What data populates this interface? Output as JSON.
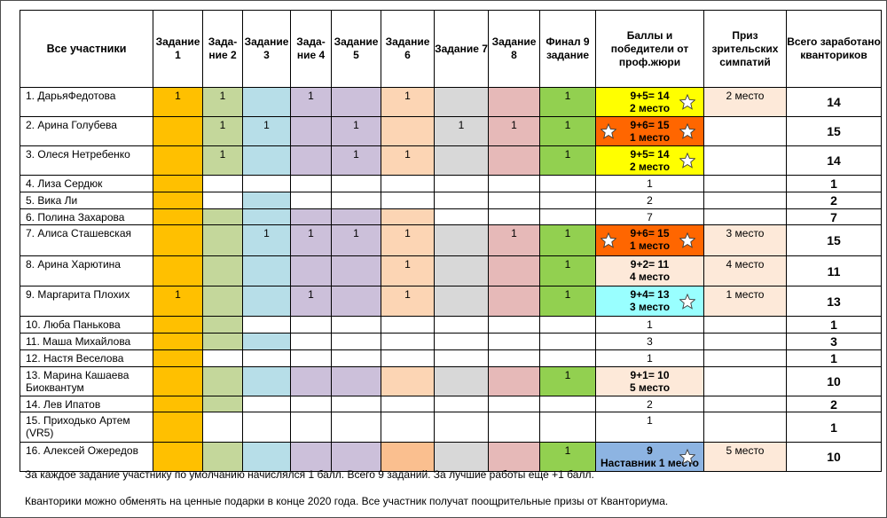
{
  "columns": [
    "Все участники",
    "Задан­ие 1",
    "Зада­ние 2",
    "Задан­ие 3",
    "Зада­ние 4",
    "Задани­e 5",
    "Задан­ие 6",
    "Задани­e 7",
    "Задани­e 8",
    "Финал 9 задани­e",
    "Баллы и победители от проф.жюри",
    "Приз зрительских симпатий",
    "Всего заработано кванториков"
  ],
  "task_colors": [
    "#ffc000",
    "#c4d79b",
    "#b7dee8",
    "#ccc0da",
    "#ccc0da",
    "#fcd5b4",
    "#d8d8d8",
    "#e6b9b8",
    "#92d050"
  ],
  "rows": [
    {
      "name": "1. ДарьяФедотова",
      "tasks": [
        "1",
        "1",
        "",
        "1",
        "",
        "1",
        "",
        "",
        "1"
      ],
      "jury": [
        "9+5= 14",
        "2 место"
      ],
      "jury_bg": "#ffff00",
      "star_right": true,
      "prize": "2 место",
      "total": "14",
      "rowbg": true,
      "h": 33
    },
    {
      "name": "2. Арина Голубева",
      "tasks": [
        "",
        "1",
        "1",
        "",
        "1",
        "",
        "1",
        "1",
        "1"
      ],
      "jury": [
        "9+6= 15",
        "1 место"
      ],
      "jury_bg": "#ff6600",
      "star_left": true,
      "star_right": true,
      "prize": "",
      "total": "15",
      "rowbg": true,
      "h": 33
    },
    {
      "name": "3. Олеся Нетребенко",
      "tasks": [
        "",
        "1",
        "",
        "",
        "1",
        "1",
        "",
        "",
        "1"
      ],
      "jury": [
        "9+5= 14",
        "2 место"
      ],
      "jury_bg": "#ffff00",
      "star_right": true,
      "prize": "",
      "total": "14",
      "rowbg": true,
      "h": 33
    },
    {
      "name": "4. Лиза Сердюк",
      "tasks": [
        "",
        "",
        "",
        "",
        "",
        "",
        "",
        "",
        ""
      ],
      "jury": [
        "1"
      ],
      "plain": true,
      "prize": "",
      "total": "1",
      "rowbg": false,
      "fill": [
        0
      ],
      "h": 19
    },
    {
      "name": "5. Вика Ли",
      "tasks": [
        "",
        "",
        "",
        "",
        "",
        "",
        "",
        "",
        ""
      ],
      "jury": [
        "2"
      ],
      "plain": true,
      "prize": "",
      "total": "2",
      "rowbg": false,
      "fill": [
        0,
        2
      ],
      "h": 19
    },
    {
      "name": "6. Полина Захарова",
      "tasks": [
        "",
        "",
        "",
        "",
        "",
        "",
        "",
        "",
        ""
      ],
      "jury": [
        "7"
      ],
      "plain": true,
      "prize": "",
      "total": "7",
      "rowbg": false,
      "fill": [
        0,
        1,
        2,
        3,
        4,
        5
      ],
      "h": 18
    },
    {
      "name": "7. Алиса Сташевская",
      "tasks": [
        "",
        "",
        "1",
        "1",
        "1",
        "1",
        "",
        "1",
        "1"
      ],
      "jury": [
        "9+6= 15",
        "1 место"
      ],
      "jury_bg": "#ff6600",
      "star_left": true,
      "star_right": true,
      "prize": "3 место",
      "total": "15",
      "rowbg": true,
      "h": 35
    },
    {
      "name": "8. Арина Харютина",
      "tasks": [
        "",
        "",
        "",
        "",
        "",
        "1",
        "",
        "",
        "1"
      ],
      "jury": [
        "9+2= 11",
        "4 место"
      ],
      "jury_bg": "#fde9d9",
      "prize": "4 место",
      "total": "11",
      "rowbg": true,
      "h": 34
    },
    {
      "name": "9. Маргарита Плохих",
      "tasks": [
        "1",
        "",
        "",
        "1",
        "",
        "1",
        "",
        "",
        "1"
      ],
      "jury": [
        "9+4= 13",
        "3 место"
      ],
      "jury_bg": "#99ffff",
      "star_right": true,
      "prize": "1 место",
      "total": "13",
      "rowbg": true,
      "h": 34
    },
    {
      "name": "10. Люба Панькова",
      "tasks": [
        "",
        "",
        "",
        "",
        "",
        "",
        "",
        "",
        ""
      ],
      "jury": [
        "1"
      ],
      "plain": true,
      "prize": "",
      "total": "1",
      "rowbg": false,
      "fill": [
        0,
        1
      ],
      "h": 19
    },
    {
      "name": "11. Маша Михайлова",
      "tasks": [
        "",
        "",
        "",
        "",
        "",
        "",
        "",
        "",
        ""
      ],
      "jury": [
        "3"
      ],
      "plain": true,
      "prize": "",
      "total": "3",
      "rowbg": false,
      "fill": [
        0,
        1,
        2
      ],
      "h": 19
    },
    {
      "name": "12. Настя Веселова",
      "tasks": [
        "",
        "",
        "",
        "",
        "",
        "",
        "",
        "",
        ""
      ],
      "jury": [
        "1"
      ],
      "plain": true,
      "prize": "",
      "total": "1",
      "rowbg": false,
      "fill": [
        0
      ],
      "h": 19
    },
    {
      "name": "13. Марина Кашаева Биоквантум",
      "tasks": [
        "",
        "",
        "",
        "",
        "",
        "",
        "",
        "",
        "1"
      ],
      "jury": [
        "9+1= 10",
        "5 место"
      ],
      "jury_bg": "#fde9d9",
      "prize": "",
      "total": "10",
      "rowbg": true,
      "h": 33
    },
    {
      "name": "14. Лев Ипатов",
      "tasks": [
        "",
        "",
        "",
        "",
        "",
        "",
        "",
        "",
        ""
      ],
      "jury": [
        "2"
      ],
      "plain": true,
      "prize": "",
      "total": "2",
      "rowbg": false,
      "fill": [
        0,
        1
      ],
      "h": 18
    },
    {
      "name": "15. Приходько Артем (VR5)",
      "tasks": [
        "",
        "",
        "",
        "",
        "",
        "",
        "",
        "",
        ""
      ],
      "jury": [
        "1"
      ],
      "plain": true,
      "prize": "",
      "total": "1",
      "rowbg": false,
      "fill": [
        0
      ],
      "h": 34
    },
    {
      "name": "16. Алексей Ожередов",
      "tasks": [
        "",
        "",
        "",
        "",
        "",
        "",
        "",
        "",
        "1"
      ],
      "jury": [
        "9",
        "Наставник 1 место"
      ],
      "jury_bg": "#8db4e2",
      "star_right": true,
      "prize": "5 место",
      "total": "10",
      "rowbg": true,
      "alt6": true,
      "h": 33
    }
  ],
  "notes": [
    "За каждое задание участнику по умолчанию начислялся 1 балл. Всего 9 заданий. За лучшие работы еще +1 балл.",
    "Кванторики можно обменять на ценные подарки в конце 2020 года. Все участник получат поощрительные призы от Кванториума."
  ],
  "prize_bg": "#fde9d9"
}
